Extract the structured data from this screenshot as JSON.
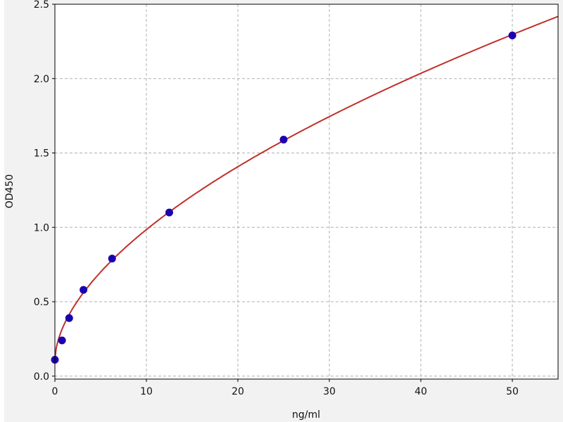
{
  "chart_data": {
    "type": "scatter",
    "title": "",
    "xlabel": "ng/ml",
    "ylabel": "OD450",
    "xlim": [
      0,
      55
    ],
    "ylim": [
      -0.02,
      2.5
    ],
    "xticks": [
      "0",
      "10",
      "20",
      "30",
      "40",
      "50"
    ],
    "yticks": [
      "0.0",
      "0.5",
      "1.0",
      "1.5",
      "2.0",
      "2.5"
    ],
    "grid": true,
    "points": {
      "x": [
        0,
        0.78,
        1.56,
        3.125,
        6.25,
        12.5,
        25,
        50
      ],
      "y": [
        0.11,
        0.24,
        0.39,
        0.58,
        0.79,
        1.1,
        1.59,
        2.29
      ],
      "color": "#1a00b0"
    },
    "fit_curve": {
      "form": "y = a + b * x^c",
      "a": 0.11,
      "b": 0.236,
      "c": 0.569,
      "color": "#c0302a"
    }
  }
}
